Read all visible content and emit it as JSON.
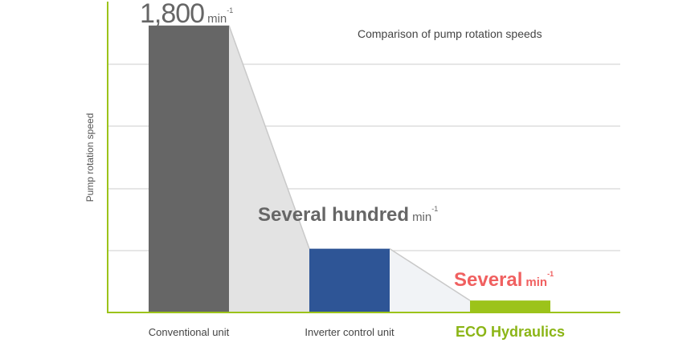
{
  "chart_data": {
    "type": "bar",
    "title": "Comparison of pump rotation speeds",
    "ylabel": "Pump rotation speed",
    "xlabel": "",
    "categories": [
      "Conventional unit",
      "Inverter control unit",
      "ECO Hydraulics"
    ],
    "values": [
      1800,
      400,
      75
    ],
    "value_labels": [
      {
        "text": "1,800",
        "unit": "min",
        "exp": "-1"
      },
      {
        "text": "Several hundred",
        "unit": "min",
        "exp": "-1"
      },
      {
        "text": "Several",
        "unit": "min",
        "exp": "-1"
      }
    ],
    "ylim": [
      0,
      1950
    ],
    "grid": true,
    "colors": {
      "bars": [
        "#666666",
        "#2e5596",
        "#9cc31a"
      ],
      "labels": [
        "#666666",
        "#666666",
        "#f06060"
      ],
      "axis": "#9cc31a",
      "grid": "#cccccc",
      "connector_fill": "#e3e3e3",
      "connector_fill_light": "#f1f3f6",
      "connector_line": "#c9c9c9",
      "highlight_category": "#8bb516"
    }
  }
}
